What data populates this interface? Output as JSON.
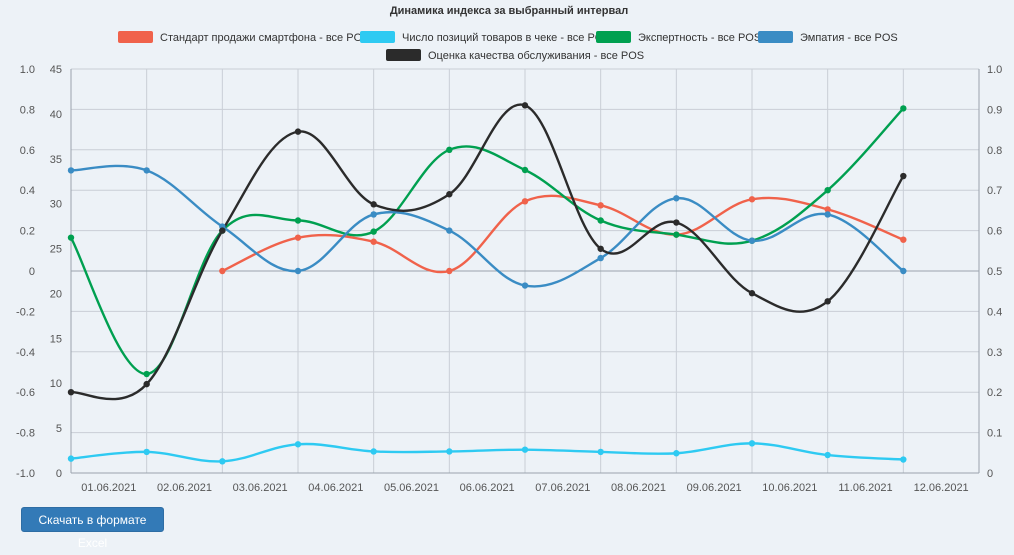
{
  "chart_data": {
    "type": "line",
    "title": "Динамика индекса за выбранный интервал",
    "categories": [
      "01.06.2021",
      "02.06.2021",
      "03.06.2021",
      "04.06.2021",
      "05.06.2021",
      "06.06.2021",
      "07.06.2021",
      "08.06.2021",
      "09.06.2021",
      "10.06.2021",
      "11.06.2021",
      "12.06.2021"
    ],
    "axes": {
      "y_left_outer": {
        "min": -1.0,
        "max": 1.0,
        "ticks": [
          "1.0",
          "0.8",
          "0.6",
          "0.4",
          "0.2",
          "0",
          "-0.2",
          "-0.4",
          "-0.6",
          "-0.8",
          "-1.0"
        ]
      },
      "y_left_inner": {
        "min": 0,
        "max": 45,
        "ticks": [
          "45",
          "40",
          "35",
          "30",
          "25",
          "20",
          "15",
          "10",
          "5",
          "0"
        ]
      },
      "y_right": {
        "min": 0,
        "max": 1.0,
        "ticks": [
          "1.0",
          "0.9",
          "0.8",
          "0.7",
          "0.6",
          "0.5",
          "0.4",
          "0.3",
          "0.2",
          "0.1",
          "0"
        ]
      }
    },
    "series": [
      {
        "name": "Стандарт продажи смартфона - все POS",
        "color": "#f0624b",
        "axis": "left_outer",
        "values": [
          null,
          null,
          0.0,
          0.165,
          0.145,
          0.0,
          0.345,
          0.325,
          0.18,
          0.355,
          0.305,
          0.155
        ]
      },
      {
        "name": "Число позиций товаров в чеке - все POS",
        "color": "#2ecaf2",
        "axis": "left_inner",
        "values": [
          1.6,
          2.35,
          1.3,
          3.2,
          2.4,
          2.4,
          2.6,
          2.35,
          2.2,
          3.3,
          2.0,
          1.5
        ]
      },
      {
        "name": "Экспертность - все POS",
        "color": "#00a050",
        "axis": "left_outer",
        "values": [
          0.165,
          -0.51,
          0.2,
          0.25,
          0.195,
          0.6,
          0.5,
          0.25,
          0.18,
          0.15,
          0.4,
          0.805
        ]
      },
      {
        "name": "Эмпатия - все POS",
        "color": "#3a8cc4",
        "axis": "right",
        "values": [
          0.749,
          0.749,
          0.61,
          0.5,
          0.64,
          0.6,
          0.464,
          0.532,
          0.68,
          0.575,
          0.64,
          0.5
        ]
      },
      {
        "name": "Оценка качества обслуживания - все POS",
        "color": "#2b2b2b",
        "axis": "right",
        "values": [
          0.2,
          0.22,
          0.6,
          0.845,
          0.665,
          0.69,
          0.91,
          0.555,
          0.62,
          0.445,
          0.425,
          0.735
        ]
      }
    ],
    "legend_position": "top"
  },
  "download_button": {
    "label": "Скачать в формате Excel"
  }
}
